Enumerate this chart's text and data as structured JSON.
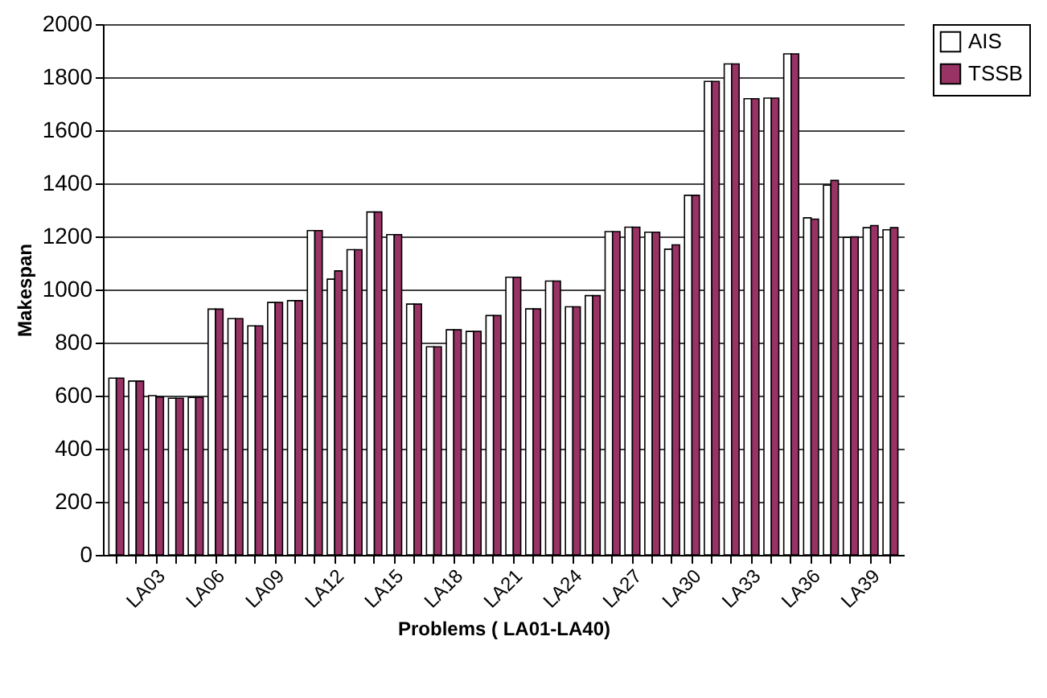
{
  "chart_data": {
    "type": "bar",
    "xlabel": "Problems ( LA01-LA40)",
    "ylabel": "Makespan",
    "categories": [
      null,
      null,
      "LA03",
      null,
      null,
      "LA06",
      null,
      null,
      "LA09",
      null,
      null,
      "LA12",
      null,
      null,
      "LA15",
      null,
      null,
      "LA18",
      null,
      null,
      "LA21",
      null,
      null,
      "LA24",
      null,
      null,
      "LA27",
      null,
      null,
      "LA30",
      null,
      null,
      "LA33",
      null,
      null,
      "LA36",
      null,
      null,
      "LA39",
      null
    ],
    "series": [
      {
        "name": "AIS",
        "color": "#ffffff",
        "values": [
          666,
          655,
          600,
          590,
          593,
          926,
          890,
          863,
          951,
          958,
          1222,
          1039,
          1150,
          1292,
          1207,
          945,
          784,
          848,
          842,
          902,
          1046,
          927,
          1032,
          935,
          977,
          1218,
          1235,
          1216,
          1152,
          1355,
          1784,
          1850,
          1719,
          1721,
          1888,
          1270,
          1393,
          1196,
          1233,
          1225
        ]
      },
      {
        "name": "TSSB",
        "color": "#993366",
        "values": [
          666,
          655,
          595,
          590,
          593,
          926,
          890,
          863,
          951,
          958,
          1222,
          1070,
          1150,
          1292,
          1207,
          945,
          784,
          848,
          842,
          902,
          1046,
          927,
          1032,
          935,
          977,
          1218,
          1235,
          1216,
          1168,
          1355,
          1784,
          1850,
          1719,
          1721,
          1888,
          1265,
          1411,
          1198,
          1241,
          1233
        ]
      }
    ],
    "ylim": [
      0,
      2000
    ],
    "yticks": [
      0,
      200,
      400,
      600,
      800,
      1000,
      1200,
      1400,
      1600,
      1800,
      2000
    ],
    "grid": "y",
    "legend": "right"
  }
}
